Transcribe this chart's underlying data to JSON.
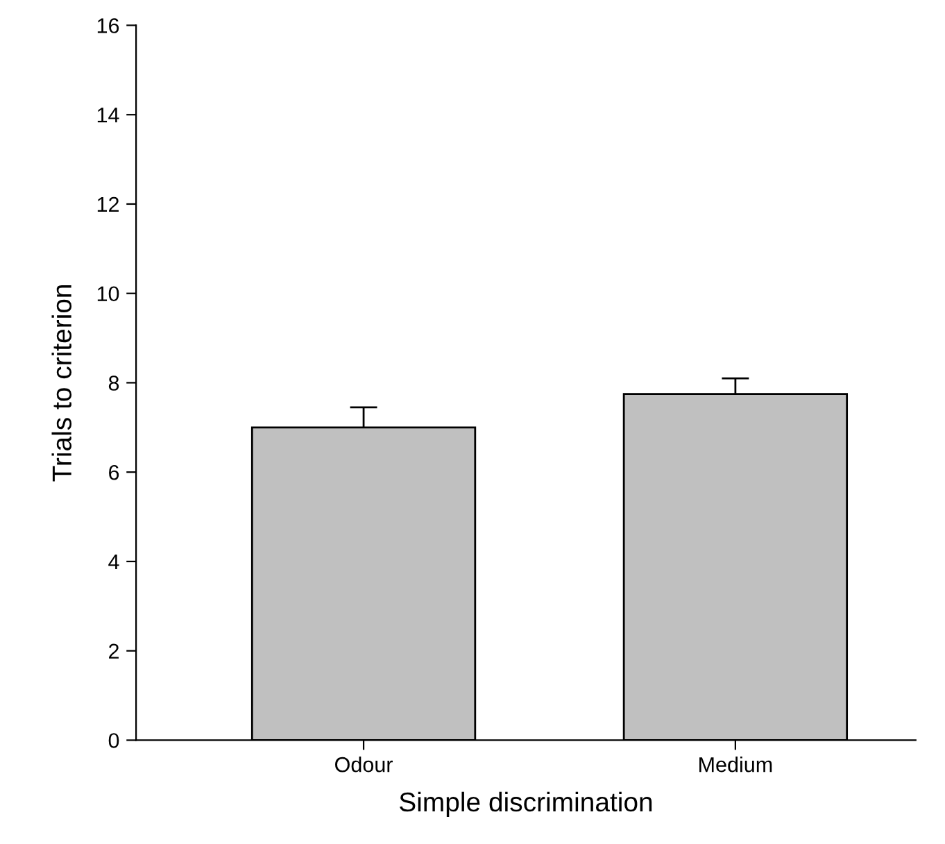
{
  "chart_data": {
    "type": "bar",
    "xlabel": "Simple discrimination",
    "ylabel": "Trials to criterion",
    "categories": [
      "Odour",
      "Medium"
    ],
    "values": [
      7.0,
      7.75
    ],
    "errors": [
      [
        7.0,
        7.45
      ],
      [
        7.75,
        8.1
      ]
    ],
    "color": "#c0c0c0",
    "ylim": [
      0,
      16
    ],
    "yticks": [
      0,
      2,
      4,
      6,
      8,
      10,
      12,
      14,
      16
    ],
    "grid": false,
    "legend": false
  }
}
